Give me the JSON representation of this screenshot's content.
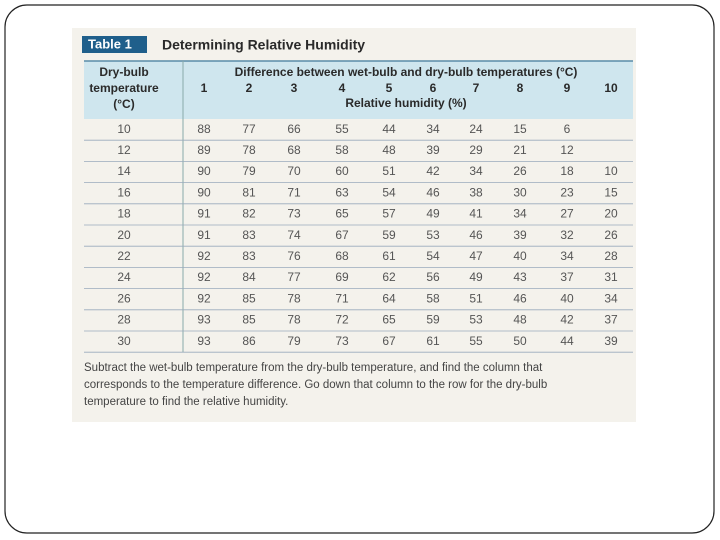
{
  "table": {
    "label": "Table 1",
    "title": "Determining Relative Humidity",
    "row_header": [
      "Dry-bulb",
      "temperature",
      "(°C)"
    ],
    "group_header": "Difference between wet-bulb and dry-bulb temperatures (°C)",
    "columns": [
      1,
      2,
      3,
      4,
      5,
      6,
      7,
      8,
      9,
      10
    ],
    "sub_header": "Relative humidity (%)",
    "rows": [
      [
        10,
        88,
        77,
        66,
        55,
        44,
        34,
        24,
        15,
        6,
        null
      ],
      [
        12,
        89,
        78,
        68,
        58,
        48,
        39,
        29,
        21,
        12,
        null
      ],
      [
        14,
        90,
        79,
        70,
        60,
        51,
        42,
        34,
        26,
        18,
        10
      ],
      [
        16,
        90,
        81,
        71,
        63,
        54,
        46,
        38,
        30,
        23,
        15
      ],
      [
        18,
        91,
        82,
        73,
        65,
        57,
        49,
        41,
        34,
        27,
        20
      ],
      [
        20,
        91,
        83,
        74,
        67,
        59,
        53,
        46,
        39,
        32,
        26
      ],
      [
        22,
        92,
        83,
        76,
        68,
        61,
        54,
        47,
        40,
        34,
        28
      ],
      [
        24,
        92,
        84,
        77,
        69,
        62,
        56,
        49,
        43,
        37,
        31
      ],
      [
        26,
        92,
        85,
        78,
        71,
        64,
        58,
        51,
        46,
        40,
        34
      ],
      [
        28,
        93,
        85,
        78,
        72,
        65,
        59,
        53,
        48,
        42,
        37
      ],
      [
        30,
        93,
        86,
        79,
        73,
        67,
        61,
        55,
        50,
        44,
        39
      ]
    ],
    "note": [
      "Subtract the wet-bulb temperature from the dry-bulb temperature, and find the column that",
      "corresponds to the temperature difference. Go down that column to the row for the dry-bulb",
      "temperature to find the relative humidity."
    ]
  }
}
